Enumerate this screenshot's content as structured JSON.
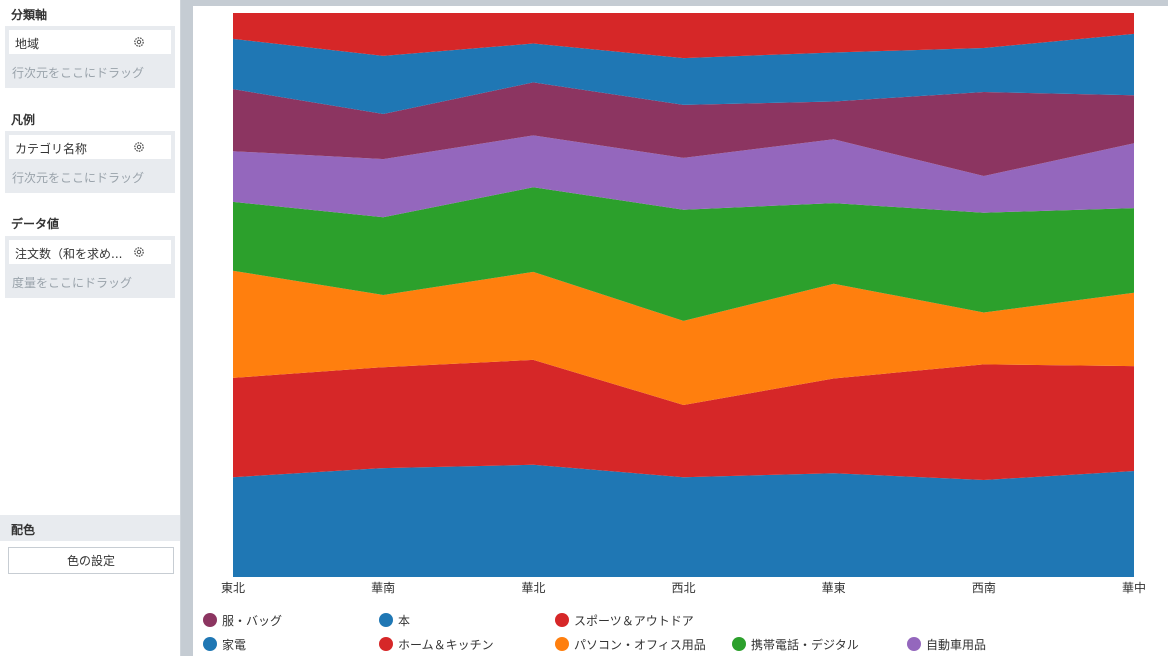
{
  "panel": {
    "category_axis": {
      "title": "分類軸",
      "field": "地域",
      "hint": "行次元をここにドラッグ"
    },
    "legend": {
      "title": "凡例",
      "field": "カテゴリ名称",
      "hint": "行次元をここにドラッグ"
    },
    "data_value": {
      "title": "データ値",
      "field": "注文数（和を求め...",
      "hint": "度量をここにドラッグ"
    },
    "color": {
      "title": "配色",
      "button": "色の設定"
    }
  },
  "chart_data": {
    "type": "area",
    "stacked": "percent",
    "categories": [
      "東北",
      "華南",
      "華北",
      "西北",
      "華東",
      "西南",
      "華中"
    ],
    "y_unit": "percent of total",
    "ylim": [
      0,
      100
    ],
    "grid": false,
    "legend_position": "bottom",
    "series": [
      {
        "name": "家電",
        "color": "#1f77b4",
        "values": [
          17.7,
          19.3,
          19.9,
          17.7,
          18.4,
          17.2,
          18.8
        ]
      },
      {
        "name": "ホーム＆キッチン",
        "color": "#d62728",
        "values": [
          17.6,
          17.9,
          18.6,
          12.8,
          16.8,
          20.5,
          18.6
        ]
      },
      {
        "name": "パソコン・オフィス用品",
        "color": "#ff7f0e",
        "values": [
          19.0,
          12.8,
          15.6,
          14.9,
          16.8,
          9.2,
          13.0
        ]
      },
      {
        "name": "携帯電話・デジタル",
        "color": "#2ca02c",
        "values": [
          12.2,
          13.8,
          15.0,
          19.7,
          14.3,
          17.7,
          15.0
        ]
      },
      {
        "name": "自動車用品",
        "color": "#9467bd",
        "values": [
          9.0,
          10.3,
          9.2,
          9.2,
          11.3,
          6.5,
          11.5
        ]
      },
      {
        "name": "服・バッグ",
        "color": "#8c3561",
        "values": [
          11.0,
          8.0,
          9.4,
          9.4,
          6.7,
          14.9,
          8.5
        ]
      },
      {
        "name": "本",
        "color": "#1f77b4",
        "values": [
          8.9,
          10.3,
          6.9,
          8.3,
          8.7,
          7.8,
          10.9
        ]
      },
      {
        "name": "スポーツ＆アウトドア",
        "color": "#d62728",
        "values": [
          4.6,
          7.6,
          5.4,
          8.0,
          7.0,
          6.2,
          3.7
        ]
      }
    ]
  }
}
